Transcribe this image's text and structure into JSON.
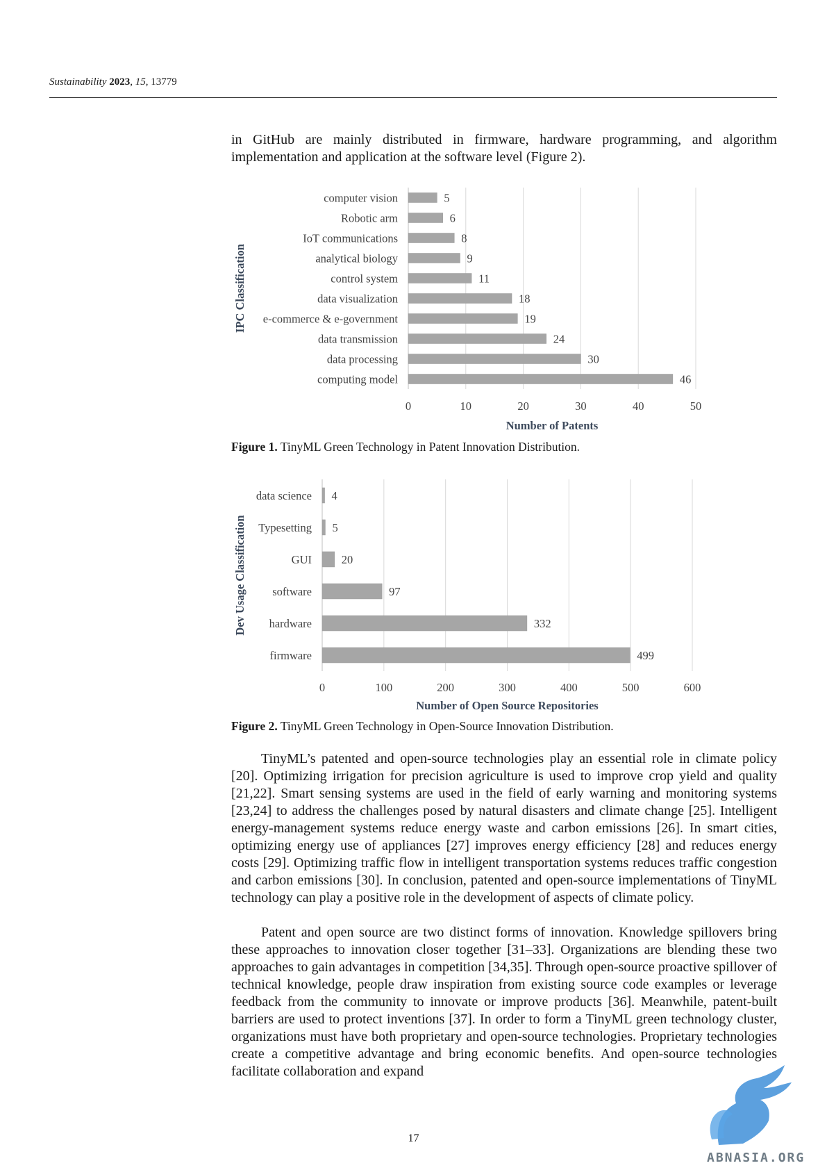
{
  "header": {
    "journal": "Sustainability",
    "year": "2023",
    "volume": "15",
    "article": "13779"
  },
  "intro_text": "in GitHub are mainly distributed in firmware, hardware programming, and algorithm implementation and application at the software level (Figure 2).",
  "figure1": {
    "label": "Figure 1.",
    "caption": "TinyML Green Technology in Patent Innovation Distribution."
  },
  "figure2": {
    "label": "Figure 2.",
    "caption": "TinyML Green Technology in Open-Source Innovation Distribution."
  },
  "chart_data": [
    {
      "type": "bar",
      "orientation": "horizontal",
      "categories": [
        "computer vision",
        "Robotic arm",
        "IoT communications",
        "analytical biology",
        "control system",
        "data visualization",
        "e-commerce & e-government",
        "data transmission",
        "data processing",
        "computing model"
      ],
      "values": [
        5,
        6,
        8,
        9,
        11,
        18,
        19,
        24,
        30,
        46
      ],
      "xlabel": "Number of Patents",
      "ylabel": "IPC Classification",
      "xlim": [
        0,
        50
      ],
      "ticks": [
        0,
        10,
        20,
        30,
        40,
        50
      ],
      "grid": true,
      "bar_color": "#a6a6a6"
    },
    {
      "type": "bar",
      "orientation": "horizontal",
      "categories": [
        "data science",
        "Typesetting",
        "GUI",
        "software",
        "hardware",
        "firmware"
      ],
      "values": [
        4,
        5,
        20,
        97,
        332,
        499
      ],
      "xlabel": "Number of Open Source Repositories",
      "ylabel": "Dev Usage Classification",
      "xlim": [
        0,
        600
      ],
      "ticks": [
        0,
        100,
        200,
        300,
        400,
        500,
        600
      ],
      "grid": true,
      "bar_color": "#a6a6a6"
    }
  ],
  "body_paragraphs": [
    "TinyML’s patented and open-source technologies play an essential role in climate policy [20]. Optimizing irrigation for precision agriculture is used to improve crop yield and quality [21,22]. Smart sensing systems are used in the field of early warning and monitoring systems [23,24] to address the challenges posed by natural disasters and climate change [25]. Intelligent energy-management systems reduce energy waste and carbon emissions [26]. In smart cities, optimizing energy use of appliances [27] improves energy efficiency [28] and reduces energy costs [29]. Optimizing traffic flow in intelligent transportation systems reduces traffic congestion and carbon emissions [30]. In conclusion, patented and open-source implementations of TinyML technology can play a positive role in the development of aspects of climate policy.",
    "Patent and open source are two distinct forms of innovation. Knowledge spillovers bring these approaches to innovation closer together [31–33]. Organizations are blending these two approaches to gain advantages in competition [34,35]. Through open-source proactive spillover of technical knowledge, people draw inspiration from existing source code examples or leverage feedback from the community to innovate or improve products [36]. Meanwhile, patent-built barriers are used to protect inventions [37]. In order to form a TinyML green technology cluster, organizations must have both proprietary and open-source technologies. Proprietary technologies create a competitive advantage and bring economic benefits. And open-source technologies facilitate collaboration and expand"
  ],
  "page_number": "17",
  "watermark": {
    "text": "ABNASIA.ORG",
    "icon": "griffin-logo-icon",
    "color": "#3f8fd8"
  }
}
